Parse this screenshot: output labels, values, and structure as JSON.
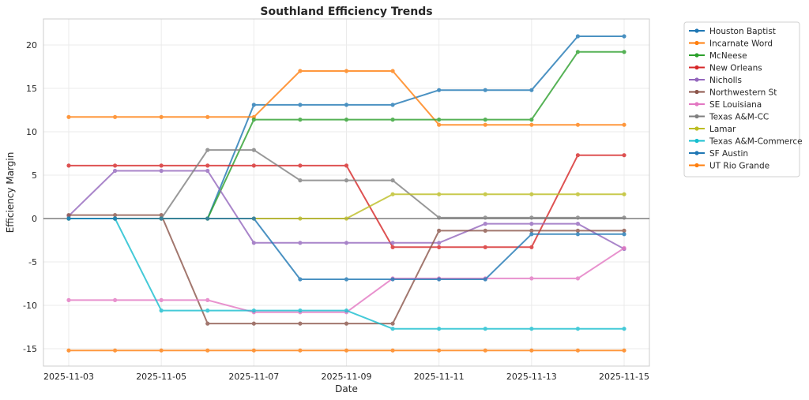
{
  "chart_data": {
    "type": "line",
    "title": "Southland Efficiency Trends",
    "xlabel": "Date",
    "ylabel": "Efficiency Margin",
    "ylim": [
      -17,
      23
    ],
    "yticks": [
      -15,
      -10,
      -5,
      0,
      5,
      10,
      15,
      20
    ],
    "grid": true,
    "legend_position": "outside-top-right",
    "dates": [
      "2025-11-03",
      "2025-11-04",
      "2025-11-05",
      "2025-11-06",
      "2025-11-07",
      "2025-11-08",
      "2025-11-09",
      "2025-11-10",
      "2025-11-11",
      "2025-11-12",
      "2025-11-13",
      "2025-11-14",
      "2025-11-15"
    ],
    "xtick_labels": [
      "2025-11-03",
      "2025-11-05",
      "2025-11-07",
      "2025-11-09",
      "2025-11-11",
      "2025-11-13",
      "2025-11-15"
    ],
    "series": [
      {
        "name": "Houston Baptist",
        "color": "#1f77b4",
        "values": [
          0,
          0,
          0,
          0,
          13.1,
          13.1,
          13.1,
          13.1,
          14.8,
          14.8,
          14.8,
          21.0,
          21.0
        ]
      },
      {
        "name": "Incarnate Word",
        "color": "#ff7f0e",
        "values": [
          11.7,
          11.7,
          11.7,
          11.7,
          11.7,
          17.0,
          17.0,
          17.0,
          10.8,
          10.8,
          10.8,
          10.8,
          10.8
        ]
      },
      {
        "name": "McNeese",
        "color": "#2ca02c",
        "values": [
          0,
          0,
          0,
          0,
          11.4,
          11.4,
          11.4,
          11.4,
          11.4,
          11.4,
          11.4,
          19.2,
          19.2
        ]
      },
      {
        "name": "New Orleans",
        "color": "#d62728",
        "values": [
          6.1,
          6.1,
          6.1,
          6.1,
          6.1,
          6.1,
          6.1,
          -3.3,
          -3.3,
          -3.3,
          -3.3,
          7.3,
          7.3
        ]
      },
      {
        "name": "Nicholls",
        "color": "#9467bd",
        "values": [
          0.3,
          5.5,
          5.5,
          5.5,
          -2.8,
          -2.8,
          -2.8,
          -2.8,
          -2.8,
          -0.6,
          -0.6,
          -0.6,
          -3.5
        ]
      },
      {
        "name": "Northwestern St",
        "color": "#8c564b",
        "values": [
          0.4,
          0.4,
          0.4,
          -12.1,
          -12.1,
          -12.1,
          -12.1,
          -12.1,
          -1.4,
          -1.4,
          -1.4,
          -1.4,
          -1.4
        ]
      },
      {
        "name": "SE Louisiana",
        "color": "#e377c2",
        "values": [
          -9.4,
          -9.4,
          -9.4,
          -9.4,
          -10.8,
          -10.8,
          -10.8,
          -6.9,
          -6.9,
          -6.9,
          -6.9,
          -6.9,
          -3.4
        ]
      },
      {
        "name": "Texas A&M-CC",
        "color": "#7f7f7f",
        "values": [
          0,
          0,
          0,
          7.9,
          7.9,
          4.4,
          4.4,
          4.4,
          0.1,
          0.1,
          0.1,
          0.1,
          0.1
        ]
      },
      {
        "name": "Lamar",
        "color": "#bcbd22",
        "values": [
          0,
          0,
          0,
          0,
          0,
          0,
          0,
          2.8,
          2.8,
          2.8,
          2.8,
          2.8,
          2.8
        ]
      },
      {
        "name": "Texas A&M-Commerce",
        "color": "#17becf",
        "values": [
          0,
          0,
          -10.6,
          -10.6,
          -10.6,
          -10.6,
          -10.6,
          -12.7,
          -12.7,
          -12.7,
          -12.7,
          -12.7,
          -12.7
        ]
      },
      {
        "name": "SF Austin",
        "color": "#1f77b4",
        "values": [
          0,
          0,
          0,
          0,
          0,
          -7.0,
          -7.0,
          -7.0,
          -7.0,
          -7.0,
          -1.8,
          -1.8,
          -1.8
        ]
      },
      {
        "name": "UT Rio Grande",
        "color": "#ff7f0e",
        "values": [
          -15.2,
          -15.2,
          -15.2,
          -15.2,
          -15.2,
          -15.2,
          -15.2,
          -15.2,
          -15.2,
          -15.2,
          -15.2,
          -15.2,
          -15.2
        ]
      }
    ]
  }
}
